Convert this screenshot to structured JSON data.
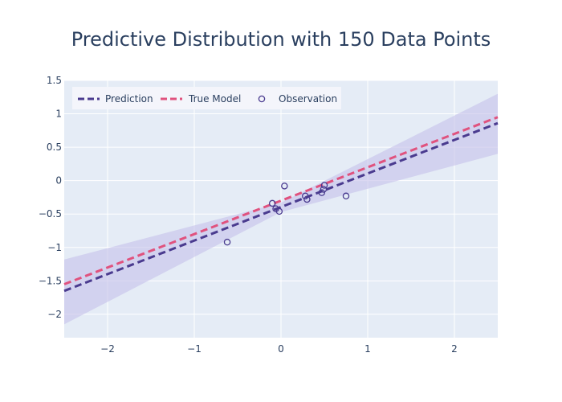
{
  "chart_data": {
    "type": "line",
    "title": "Predictive Distribution with 150 Data Points",
    "xlabel": "",
    "ylabel": "",
    "xlim": [
      -2.5,
      2.5
    ],
    "ylim": [
      -2.35,
      1.5
    ],
    "x_ticks": [
      -2,
      -1,
      0,
      1,
      2
    ],
    "y_ticks": [
      -2,
      -1.5,
      -1,
      -0.5,
      0,
      0.5,
      1,
      1.5
    ],
    "grid": true,
    "legend_position": "top-left",
    "series": [
      {
        "name": "Prediction",
        "style": "dashed",
        "color": "#4a3b8f",
        "x": [
          -2.5,
          2.5
        ],
        "y": [
          -1.65,
          0.86
        ]
      },
      {
        "name": "True Model",
        "style": "dashed",
        "color": "#e0527e",
        "x": [
          -2.5,
          2.5
        ],
        "y": [
          -1.55,
          0.95
        ]
      },
      {
        "name": "Observation",
        "style": "markers",
        "color": "#4a3b8f",
        "x": [
          -0.62,
          -0.1,
          -0.06,
          -0.02,
          0.04,
          0.28,
          0.3,
          0.47,
          0.49,
          0.5,
          0.75
        ],
        "y": [
          -0.92,
          -0.34,
          -0.42,
          -0.46,
          -0.08,
          -0.23,
          -0.28,
          -0.18,
          -0.13,
          -0.07,
          -0.23
        ]
      }
    ],
    "uncertainty_band": {
      "color": "#c6c2ea",
      "x": [
        -2.5,
        0,
        2.5
      ],
      "upper": [
        -1.18,
        -0.33,
        1.3
      ],
      "lower": [
        -2.15,
        -0.47,
        0.4
      ]
    }
  }
}
